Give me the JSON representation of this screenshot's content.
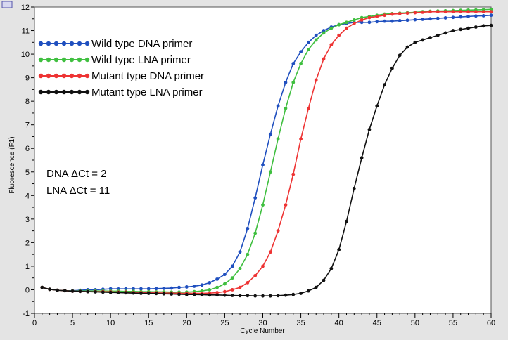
{
  "chart_data": {
    "type": "line",
    "title": "",
    "xlabel": "Cycle Number",
    "ylabel": "Fluorescence (F1)",
    "xlim": [
      0,
      60
    ],
    "ylim": [
      -1,
      12
    ],
    "xticks": [
      0,
      5,
      10,
      15,
      20,
      25,
      30,
      35,
      40,
      45,
      50,
      55,
      60
    ],
    "yticks": [
      -1,
      0,
      1,
      2,
      3,
      4,
      5,
      6,
      7,
      8,
      9,
      10,
      11,
      12
    ],
    "grid": false,
    "legend_position": "upper-left",
    "annotations": [
      "DNA ΔCt = 2",
      "LNA ΔCt = 11"
    ],
    "series": [
      {
        "name": "Wild type DNA primer",
        "color": "#1f4fbf",
        "x": [
          1,
          2,
          3,
          4,
          5,
          6,
          7,
          8,
          9,
          10,
          11,
          12,
          13,
          14,
          15,
          16,
          17,
          18,
          19,
          20,
          21,
          22,
          23,
          24,
          25,
          26,
          27,
          28,
          29,
          30,
          31,
          32,
          33,
          34,
          35,
          36,
          37,
          38,
          39,
          40,
          41,
          42,
          43,
          44,
          45,
          46,
          47,
          48,
          49,
          50,
          51,
          52,
          53,
          54,
          55,
          56,
          57,
          58,
          59,
          60
        ],
        "y": [
          0.1,
          0.02,
          -0.02,
          -0.04,
          -0.04,
          -0.02,
          0.0,
          0.0,
          0.02,
          0.04,
          0.04,
          0.04,
          0.04,
          0.04,
          0.04,
          0.05,
          0.06,
          0.07,
          0.1,
          0.12,
          0.15,
          0.2,
          0.3,
          0.45,
          0.65,
          1.0,
          1.6,
          2.6,
          3.9,
          5.3,
          6.6,
          7.8,
          8.8,
          9.6,
          10.1,
          10.5,
          10.8,
          11.0,
          11.15,
          11.25,
          11.3,
          11.35,
          11.35,
          11.35,
          11.38,
          11.4,
          11.4,
          11.42,
          11.44,
          11.46,
          11.48,
          11.5,
          11.52,
          11.54,
          11.56,
          11.58,
          11.6,
          11.62,
          11.63,
          11.65
        ]
      },
      {
        "name": "Wild type LNA primer",
        "color": "#3fbf3f",
        "x": [
          1,
          2,
          3,
          4,
          5,
          6,
          7,
          8,
          9,
          10,
          11,
          12,
          13,
          14,
          15,
          16,
          17,
          18,
          19,
          20,
          21,
          22,
          23,
          24,
          25,
          26,
          27,
          28,
          29,
          30,
          31,
          32,
          33,
          34,
          35,
          36,
          37,
          38,
          39,
          40,
          41,
          42,
          43,
          44,
          45,
          46,
          47,
          48,
          49,
          50,
          51,
          52,
          53,
          54,
          55,
          56,
          57,
          58,
          59,
          60
        ],
        "y": [
          0.1,
          0.02,
          -0.02,
          -0.04,
          -0.05,
          -0.05,
          -0.05,
          -0.05,
          -0.05,
          -0.06,
          -0.06,
          -0.07,
          -0.07,
          -0.08,
          -0.08,
          -0.09,
          -0.09,
          -0.1,
          -0.1,
          -0.1,
          -0.08,
          -0.05,
          0.0,
          0.1,
          0.25,
          0.5,
          0.9,
          1.5,
          2.4,
          3.6,
          5.0,
          6.4,
          7.7,
          8.8,
          9.6,
          10.2,
          10.6,
          10.9,
          11.1,
          11.25,
          11.35,
          11.45,
          11.55,
          11.6,
          11.65,
          11.7,
          11.72,
          11.74,
          11.76,
          11.78,
          11.8,
          11.82,
          11.83,
          11.84,
          11.85,
          11.86,
          11.87,
          11.88,
          11.89,
          11.9
        ]
      },
      {
        "name": "Mutant type DNA primer",
        "color": "#ee3333",
        "x": [
          1,
          2,
          3,
          4,
          5,
          6,
          7,
          8,
          9,
          10,
          11,
          12,
          13,
          14,
          15,
          16,
          17,
          18,
          19,
          20,
          21,
          22,
          23,
          24,
          25,
          26,
          27,
          28,
          29,
          30,
          31,
          32,
          33,
          34,
          35,
          36,
          37,
          38,
          39,
          40,
          41,
          42,
          43,
          44,
          45,
          46,
          47,
          48,
          49,
          50,
          51,
          52,
          53,
          54,
          55,
          56,
          57,
          58,
          59,
          60
        ],
        "y": [
          0.1,
          0.02,
          -0.02,
          -0.04,
          -0.06,
          -0.07,
          -0.08,
          -0.08,
          -0.08,
          -0.09,
          -0.1,
          -0.1,
          -0.12,
          -0.12,
          -0.13,
          -0.13,
          -0.14,
          -0.14,
          -0.15,
          -0.15,
          -0.15,
          -0.15,
          -0.14,
          -0.12,
          -0.08,
          0.0,
          0.1,
          0.3,
          0.6,
          1.0,
          1.6,
          2.5,
          3.6,
          4.9,
          6.4,
          7.7,
          8.9,
          9.8,
          10.4,
          10.8,
          11.1,
          11.3,
          11.45,
          11.55,
          11.6,
          11.65,
          11.7,
          11.72,
          11.74,
          11.76,
          11.78,
          11.8,
          11.8,
          11.8,
          11.8,
          11.8,
          11.8,
          11.8,
          11.8,
          11.8
        ]
      },
      {
        "name": "Mutant type LNA primer",
        "color": "#111111",
        "x": [
          1,
          2,
          3,
          4,
          5,
          6,
          7,
          8,
          9,
          10,
          11,
          12,
          13,
          14,
          15,
          16,
          17,
          18,
          19,
          20,
          21,
          22,
          23,
          24,
          25,
          26,
          27,
          28,
          29,
          30,
          31,
          32,
          33,
          34,
          35,
          36,
          37,
          38,
          39,
          40,
          41,
          42,
          43,
          44,
          45,
          46,
          47,
          48,
          49,
          50,
          51,
          52,
          53,
          54,
          55,
          56,
          57,
          58,
          59,
          60
        ],
        "y": [
          0.1,
          0.02,
          -0.02,
          -0.04,
          -0.06,
          -0.07,
          -0.08,
          -0.09,
          -0.1,
          -0.11,
          -0.12,
          -0.13,
          -0.14,
          -0.15,
          -0.15,
          -0.16,
          -0.17,
          -0.18,
          -0.19,
          -0.2,
          -0.2,
          -0.21,
          -0.22,
          -0.22,
          -0.23,
          -0.24,
          -0.25,
          -0.25,
          -0.26,
          -0.26,
          -0.26,
          -0.25,
          -0.23,
          -0.2,
          -0.15,
          -0.05,
          0.1,
          0.4,
          0.9,
          1.7,
          2.9,
          4.3,
          5.6,
          6.8,
          7.8,
          8.7,
          9.4,
          9.95,
          10.3,
          10.5,
          10.6,
          10.7,
          10.8,
          10.9,
          11.0,
          11.05,
          11.1,
          11.15,
          11.2,
          11.22
        ]
      }
    ]
  }
}
